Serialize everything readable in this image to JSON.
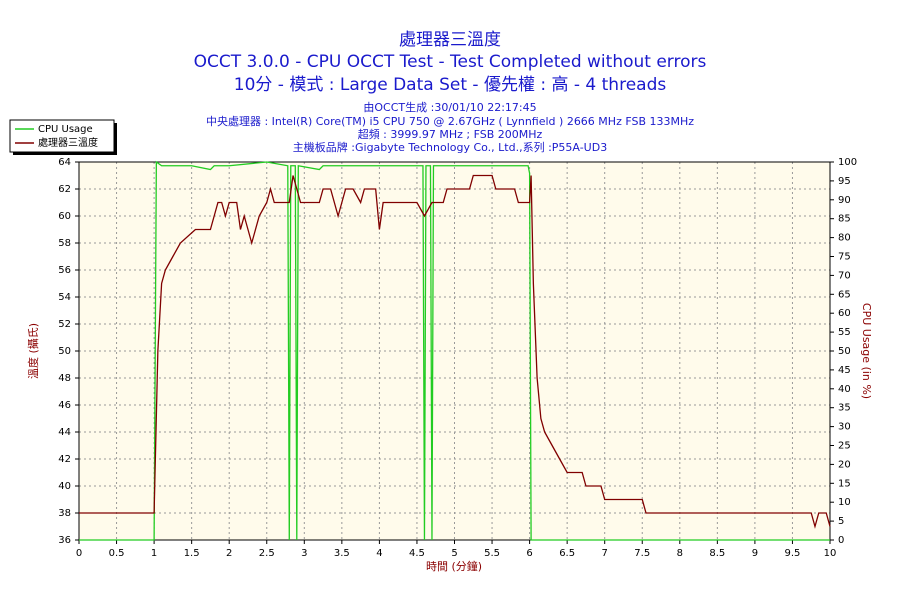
{
  "chart_data": {
    "type": "line",
    "title": "處理器三溫度",
    "title_lines": [
      "OCCT 3.0.0 - CPU OCCT Test - Test Completed without errors",
      "10分 - 模式 : Large Data Set - 優先權 : 高 - 4 threads"
    ],
    "subtitles": [
      "由OCCT生成 :30/01/10 22:17:45",
      "中央處理器 : Intel(R) Core(TM) i5 CPU 750 @ 2.67GHz ( Lynnfield ) 2666 MHz FSB 133MHz",
      "超頻 : 3999.97 MHz ; FSB 200MHz",
      "主機板品牌 :Gigabyte Technology Co., Ltd.,系列 :P55A-UD3"
    ],
    "x_label": "時間 (分鐘)",
    "y_label": "溫度 (攝氏)",
    "y2_label": "CPU Usage (in %)",
    "xlim": [
      0,
      10
    ],
    "xticks": [
      0,
      0.5,
      1,
      1.5,
      2,
      2.5,
      3,
      3.5,
      4,
      4.5,
      5,
      5.5,
      6,
      6.5,
      7,
      7.5,
      8,
      8.5,
      9,
      9.5,
      10
    ],
    "ylim": [
      36,
      64
    ],
    "yticks": [
      36,
      38,
      40,
      42,
      44,
      46,
      48,
      50,
      52,
      54,
      56,
      58,
      60,
      62,
      64
    ],
    "y2lim": [
      0,
      100
    ],
    "y2ticks": [
      0,
      5,
      10,
      15,
      20,
      25,
      30,
      35,
      40,
      45,
      50,
      55,
      60,
      65,
      70,
      75,
      80,
      85,
      90,
      95,
      100
    ],
    "grid": true,
    "legend": "top-left",
    "series": [
      {
        "name": "CPU Usage",
        "color": "#22cc22",
        "axis": "y2",
        "x": [
          0,
          1.0,
          1.03,
          1.1,
          1.5,
          1.75,
          1.8,
          2.0,
          2.5,
          2.78,
          2.8,
          2.82,
          2.88,
          2.9,
          2.92,
          3.2,
          3.25,
          3.5,
          4.0,
          4.58,
          4.6,
          4.62,
          4.68,
          4.7,
          4.72,
          5.0,
          5.5,
          5.98,
          6.0,
          6.02,
          10
        ],
        "values": [
          0,
          0,
          100,
          99,
          99,
          98,
          99,
          99,
          100,
          99,
          0,
          99,
          99,
          0,
          99,
          98,
          99,
          99,
          99,
          99,
          0,
          99,
          99,
          0,
          99,
          99,
          99,
          99,
          97,
          0,
          0
        ]
      },
      {
        "name": "處理器三溫度",
        "color": "#800000",
        "x": [
          0,
          1.0,
          1.05,
          1.1,
          1.15,
          1.25,
          1.35,
          1.55,
          1.75,
          1.8,
          1.85,
          1.9,
          1.95,
          2.0,
          2.1,
          2.15,
          2.2,
          2.3,
          2.4,
          2.5,
          2.55,
          2.6,
          2.8,
          2.85,
          2.95,
          3.2,
          3.25,
          3.35,
          3.45,
          3.55,
          3.65,
          3.75,
          3.8,
          3.95,
          4.0,
          4.05,
          4.5,
          4.6,
          4.7,
          4.85,
          4.9,
          5.2,
          5.25,
          5.5,
          5.55,
          5.8,
          5.85,
          6.0,
          6.02,
          6.05,
          6.1,
          6.15,
          6.2,
          6.3,
          6.4,
          6.5,
          6.7,
          6.75,
          6.95,
          7.0,
          7.5,
          7.55,
          9.75,
          9.8,
          9.85,
          9.95,
          10
        ],
        "values": [
          38,
          38,
          50,
          55,
          56,
          57,
          58,
          59,
          59,
          60,
          61,
          61,
          60,
          61,
          61,
          59,
          60,
          58,
          60,
          61,
          62,
          61,
          61,
          63,
          61,
          61,
          62,
          62,
          60,
          62,
          62,
          61,
          62,
          62,
          59,
          61,
          61,
          60,
          61,
          61,
          62,
          62,
          63,
          63,
          62,
          62,
          61,
          61,
          63,
          55,
          48,
          45,
          44,
          43,
          42,
          41,
          41,
          40,
          40,
          39,
          39,
          38,
          38,
          37,
          38,
          38,
          37
        ]
      }
    ]
  }
}
